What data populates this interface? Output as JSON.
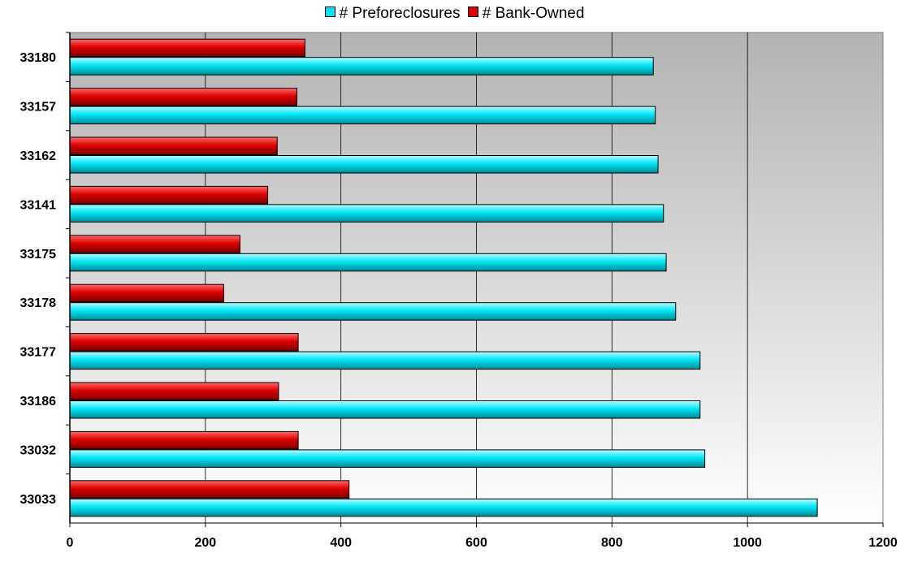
{
  "chart_data": {
    "type": "bar",
    "orientation": "horizontal",
    "categories": [
      "33180",
      "33157",
      "33162",
      "33141",
      "33175",
      "33178",
      "33177",
      "33186",
      "33032",
      "33033"
    ],
    "series": [
      {
        "name": "# Preforeclosures",
        "color": "#00E5F5",
        "values": [
          861,
          864,
          868,
          876,
          880,
          894,
          930,
          930,
          937,
          1103
        ]
      },
      {
        "name": "# Bank-Owned",
        "color": "#DD0000",
        "values": [
          347,
          335,
          306,
          292,
          251,
          227,
          337,
          308,
          337,
          412
        ]
      }
    ],
    "xlim": [
      0,
      1200
    ],
    "xticks": [
      0,
      200,
      400,
      600,
      800,
      1000,
      1200
    ],
    "xlabel": "",
    "ylabel": "",
    "title": "",
    "grid": "vertical",
    "legend_position": "top"
  }
}
